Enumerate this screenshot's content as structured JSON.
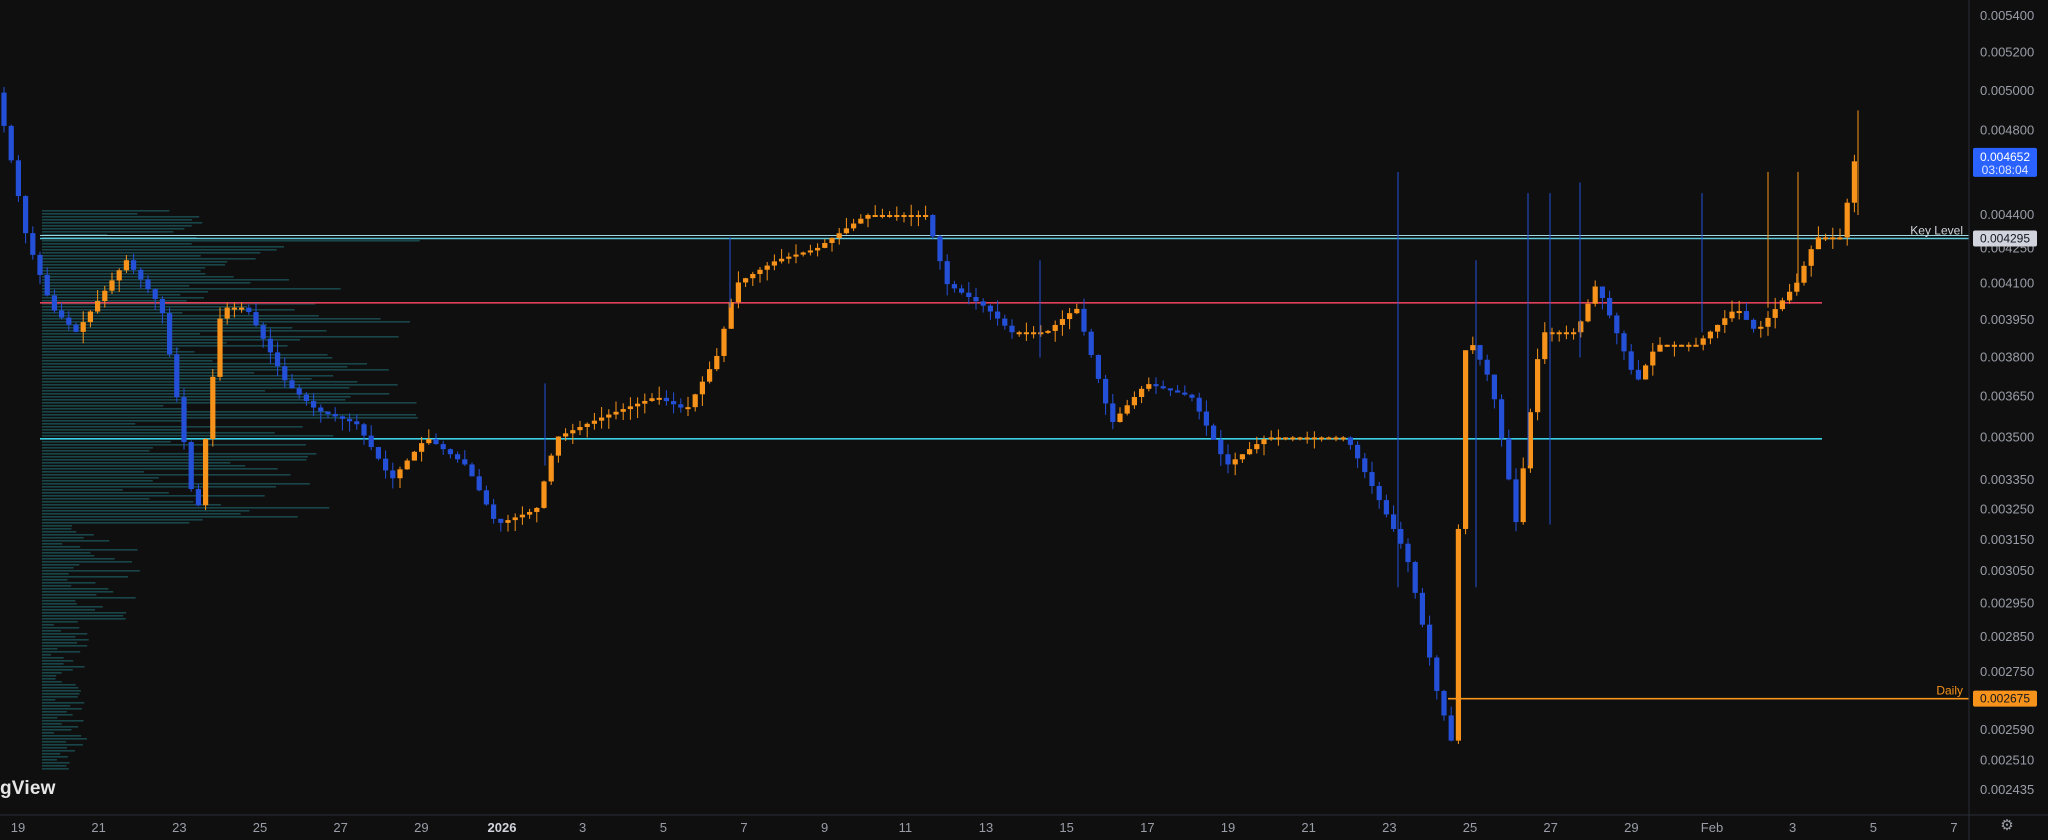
{
  "brand": "gView",
  "chart_data": {
    "type": "candlestick",
    "price_axis": {
      "ticks": [
        0.0054,
        0.0052,
        0.005,
        0.0048,
        0.0044,
        0.00425,
        0.0041,
        0.00395,
        0.0038,
        0.00365,
        0.0035,
        0.00335,
        0.00325,
        0.00315,
        0.00305,
        0.00295,
        0.00285,
        0.00275,
        0.00259,
        0.00251,
        0.002435
      ],
      "tick_labels": [
        "0.005400",
        "0.005200",
        "0.005000",
        "0.004800",
        "0.004400",
        "0.004250",
        "0.004100",
        "0.003950",
        "0.003800",
        "0.003650",
        "0.003500",
        "0.003350",
        "0.003250",
        "0.003150",
        "0.003050",
        "0.002950",
        "0.002850",
        "0.002750",
        "0.002590",
        "0.002510",
        "0.002435"
      ],
      "log_scale": true
    },
    "time_axis": {
      "labels": [
        "19",
        "21",
        "23",
        "25",
        "27",
        "29",
        "2026",
        "3",
        "5",
        "7",
        "9",
        "11",
        "13",
        "15",
        "17",
        "19",
        "21",
        "23",
        "25",
        "27",
        "29",
        "Feb",
        "3",
        "5",
        "7"
      ],
      "bold": [
        "2026"
      ]
    },
    "current_price": {
      "value": "0.004652",
      "countdown": "03:08:04",
      "color": "#2962ff"
    },
    "levels": [
      {
        "name": "Key Level",
        "price": 0.004295,
        "label": "0.004295",
        "color": "#d1d4dc",
        "line_color": "#5ec8d8"
      },
      {
        "name": "",
        "price": 0.00402,
        "label": "",
        "color": "#e0405a",
        "line_color": "#e0405a"
      },
      {
        "name": "",
        "price": 0.003495,
        "label": "",
        "color": "#3ad0e6",
        "line_color": "#3ad0e6"
      },
      {
        "name": "Daily",
        "price": 0.002675,
        "label": "0.002675",
        "color": "#f7931a",
        "line_color": "#f7931a"
      }
    ],
    "colors": {
      "up": "#f7931a",
      "down": "#2450d8",
      "volume_profile": "#1d5a5e",
      "background": "#0f0f0f"
    },
    "grid": false
  }
}
